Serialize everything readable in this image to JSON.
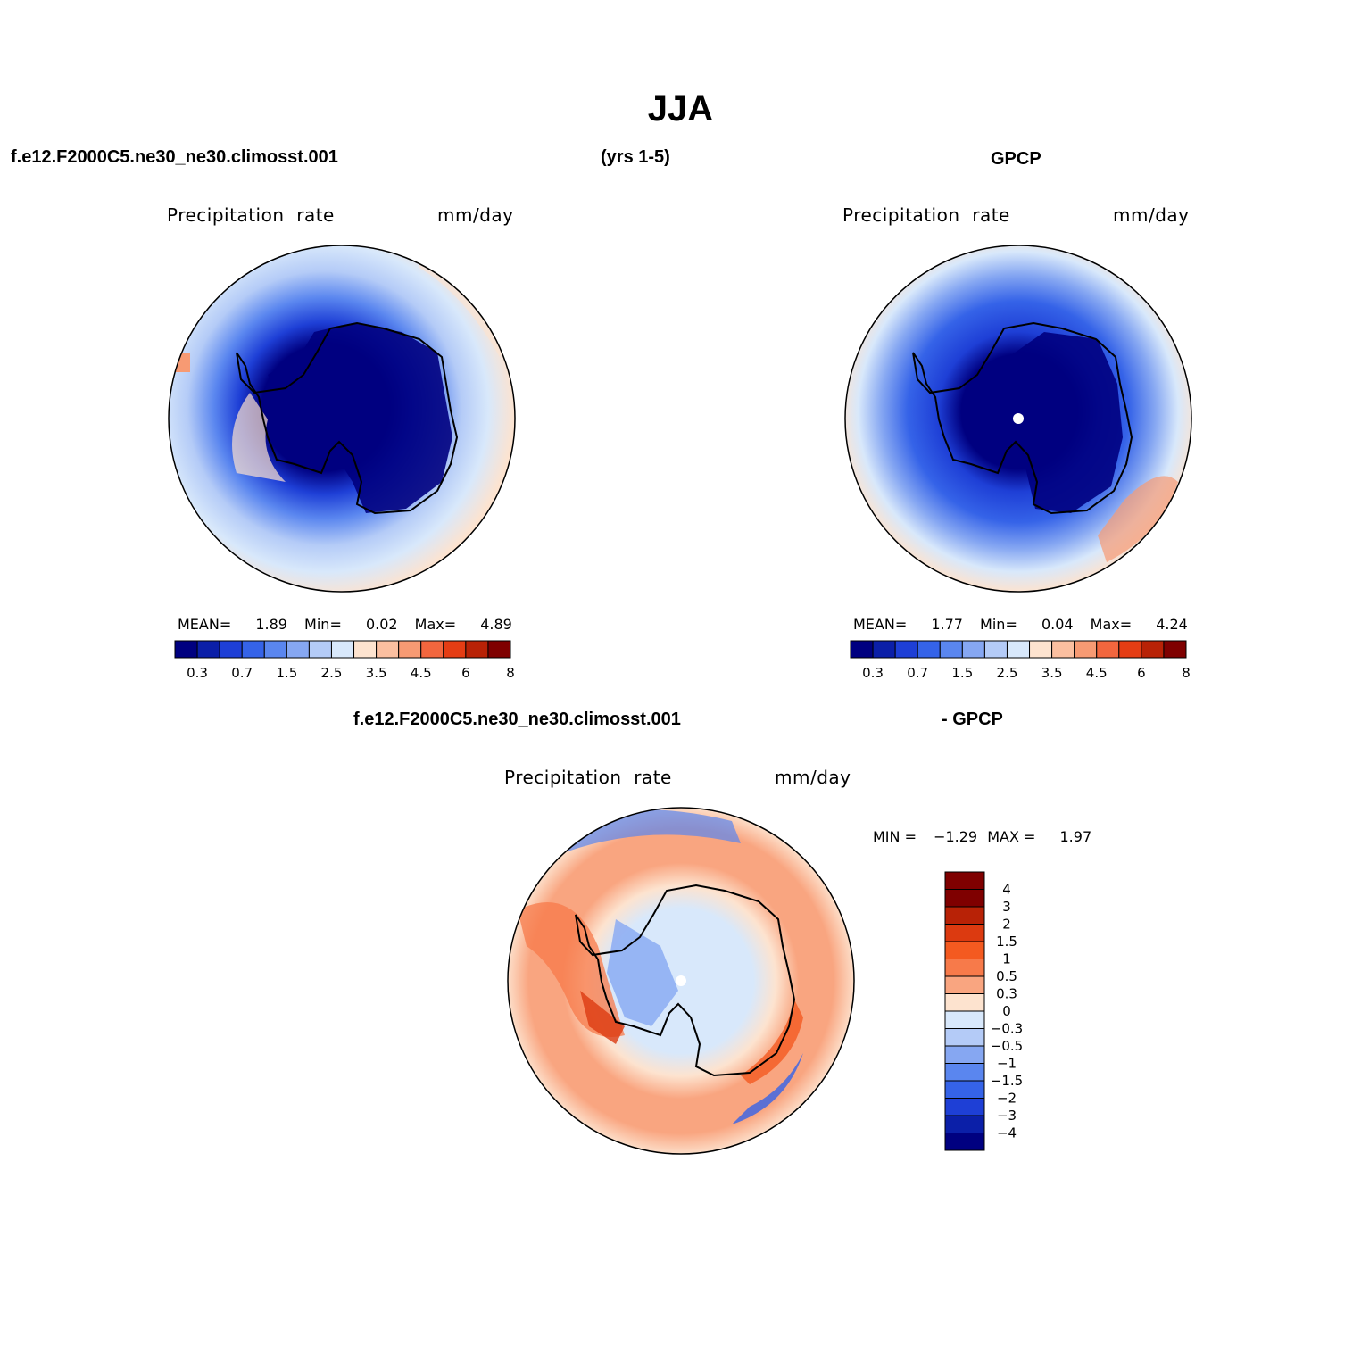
{
  "figure": {
    "title": "JJA",
    "case_name": "f.e12.F2000C5.ne30_ne30.climosst.001",
    "years": "(yrs 1-5)",
    "obs_name": "GPCP",
    "diff_case_name": "f.e12.F2000C5.ne30_ne30.climosst.001",
    "diff_obs_name": "- GPCP"
  },
  "panels": [
    {
      "variable": "Precipitation  rate",
      "units": "mm/day",
      "stats": {
        "mean_label": "MEAN=",
        "mean": "1.89",
        "min_label": "Min=",
        "min": "0.02",
        "max_label": "Max=",
        "max": "4.89"
      }
    },
    {
      "variable": "Precipitation  rate",
      "units": "mm/day",
      "stats": {
        "mean_label": "MEAN=",
        "mean": "1.77",
        "min_label": "Min=",
        "min": "0.04",
        "max_label": "Max=",
        "max": "4.24"
      }
    },
    {
      "variable": "Precipitation  rate",
      "units": "mm/day",
      "stats": {
        "min_label": "MIN =",
        "min": "−1.29",
        "max_label": "MAX =",
        "max": "1.97"
      }
    }
  ],
  "colorbars": {
    "absolute": {
      "colors": [
        "#000080",
        "#0b1fa8",
        "#1e3fd6",
        "#3563e8",
        "#5a86ef",
        "#86a7f2",
        "#b4cbf7",
        "#d8e8fb",
        "#fde3cf",
        "#fbbfa0",
        "#f79a73",
        "#f2663e",
        "#e53d14",
        "#b82206",
        "#7f0000"
      ],
      "tick_labels": [
        "0.3",
        "0.7",
        "1.5",
        "2.5",
        "3.5",
        "4.5",
        "6",
        "8"
      ]
    },
    "difference": {
      "colors": [
        "#7f0000",
        "#b82206",
        "#dc3a10",
        "#f45a20",
        "#f77a4a",
        "#f9a580",
        "#fde3cf",
        "#d8e8fb",
        "#b4cbf7",
        "#86a7f2",
        "#5a86ef",
        "#3563e8",
        "#1e3fd6",
        "#0b1fa8",
        "#000080"
      ],
      "tick_labels": [
        "4",
        "3",
        "2",
        "1.5",
        "1",
        "0.5",
        "0.3",
        "0",
        "−0.3",
        "−0.5",
        "−1",
        "−1.5",
        "−2",
        "−3",
        "−4"
      ]
    }
  }
}
